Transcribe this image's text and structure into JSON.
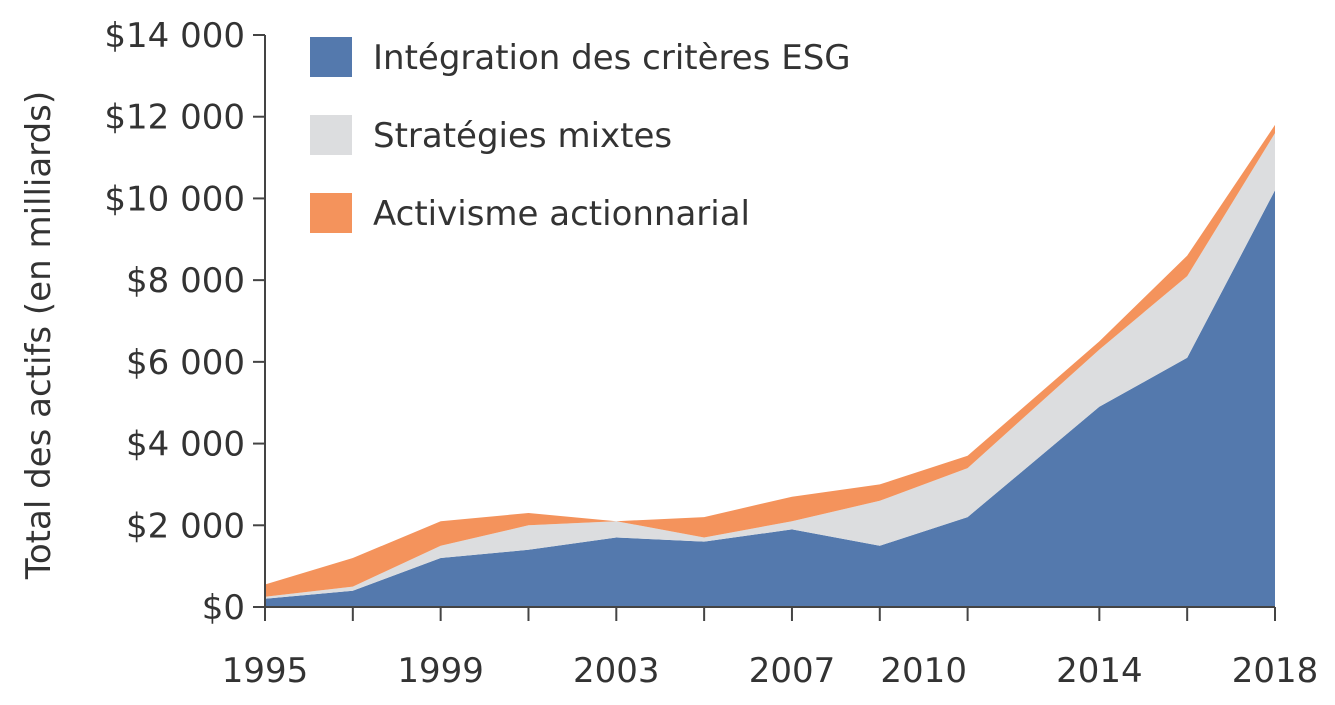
{
  "chart_data": {
    "type": "area",
    "stacked": true,
    "title": "",
    "ylabel": "Total des actifs (en milliards)",
    "xlabel": "",
    "x": [
      1995,
      1997,
      1999,
      2001,
      2003,
      2005,
      2007,
      2009,
      2011,
      2014,
      2016,
      2018
    ],
    "xtick_labels": [
      "1995",
      "1999",
      "2003",
      "2007",
      "2010",
      "2014",
      "2018"
    ],
    "xtick_positions": [
      1995,
      1999,
      2003,
      2007,
      2010,
      2014,
      2018
    ],
    "ylim": [
      0,
      14000
    ],
    "yticks": [
      0,
      2000,
      4000,
      6000,
      8000,
      10000,
      12000,
      14000
    ],
    "ytick_labels": [
      "$0",
      "$2 000",
      "$4 000",
      "$6 000",
      "$8 000",
      "$10 000",
      "$12 000",
      "$14 000"
    ],
    "series": [
      {
        "name": "Intégration des critères ESG",
        "color": "#5479ad",
        "values": [
          200,
          400,
          1200,
          1400,
          1700,
          1600,
          1900,
          1500,
          2200,
          4900,
          6100,
          10200
        ]
      },
      {
        "name": "Stratégies mixtes",
        "color": "#dcdddf",
        "values": [
          50,
          100,
          300,
          600,
          400,
          100,
          200,
          1100,
          1200,
          1400,
          2000,
          1400
        ]
      },
      {
        "name": "Activisme actionnarial",
        "color": "#f4935c",
        "values": [
          300,
          700,
          600,
          300,
          0,
          500,
          600,
          400,
          300,
          200,
          500,
          200
        ]
      }
    ],
    "legend_position": "top-left",
    "grid": false
  }
}
